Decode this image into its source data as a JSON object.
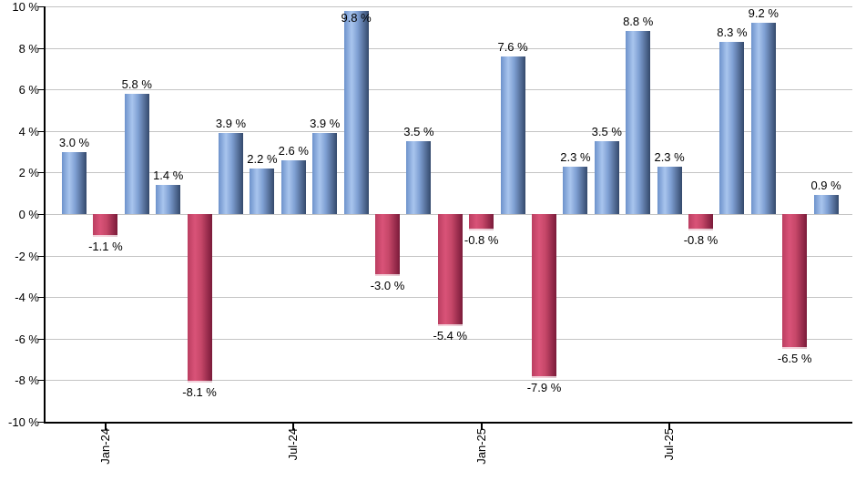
{
  "chart_data": {
    "type": "bar",
    "title": "",
    "xlabel": "",
    "ylabel": "",
    "grid": "horizontal",
    "legend": "none",
    "ylim": [
      -10,
      10
    ],
    "y_step": 2,
    "y_tick_labels": [
      "10 %",
      "8 %",
      "6 %",
      "4 %",
      "2 %",
      "0 %",
      "-2 %",
      "-4 %",
      "-6 %",
      "-8 %",
      "-10 %"
    ],
    "x_tick_labels": [
      {
        "label": "Jan-24",
        "bar_index": 1
      },
      {
        "label": "Jul-24",
        "bar_index": 7
      },
      {
        "label": "Jan-25",
        "bar_index": 13
      },
      {
        "label": "Jul-25",
        "bar_index": 19
      }
    ],
    "bars": [
      {
        "value": 3.0,
        "label": "3.0 %"
      },
      {
        "value": -1.1,
        "label": "-1.1 %"
      },
      {
        "value": 5.8,
        "label": "5.8 %"
      },
      {
        "value": 1.4,
        "label": "1.4 %"
      },
      {
        "value": -8.1,
        "label": "-8.1 %"
      },
      {
        "value": 3.9,
        "label": "3.9 %"
      },
      {
        "value": 2.2,
        "label": "2.2 %"
      },
      {
        "value": 2.6,
        "label": "2.6 %"
      },
      {
        "value": 3.9,
        "label": "3.9 %"
      },
      {
        "value": 9.8,
        "label": "9.8 %"
      },
      {
        "value": -3.0,
        "label": "-3.0 %"
      },
      {
        "value": 3.5,
        "label": "3.5 %"
      },
      {
        "value": -5.4,
        "label": "-5.4 %"
      },
      {
        "value": -0.8,
        "label": "-0.8 %"
      },
      {
        "value": 7.6,
        "label": "7.6 %"
      },
      {
        "value": -7.9,
        "label": "-7.9 %"
      },
      {
        "value": 2.3,
        "label": "2.3 %"
      },
      {
        "value": 3.5,
        "label": "3.5 %"
      },
      {
        "value": 8.8,
        "label": "8.8 %"
      },
      {
        "value": 2.3,
        "label": "2.3 %"
      },
      {
        "value": -0.8,
        "label": "-0.8 %"
      },
      {
        "value": 8.3,
        "label": "8.3 %"
      },
      {
        "value": 9.2,
        "label": "9.2 %"
      },
      {
        "value": -6.5,
        "label": "-6.5 %"
      },
      {
        "value": 0.9,
        "label": "0.9 %"
      }
    ],
    "colors": {
      "positive_edge": "#6d92cb",
      "positive_light": "#a9c5ee",
      "positive_mid": "#7e9fd2",
      "positive_dark": "#34496c",
      "negative_edge": "#bb3e61",
      "negative_light": "#d95378",
      "negative_mid": "#c64769",
      "negative_dark": "#7a1a39",
      "gridline": "#c4c4c4",
      "axis": "#000000",
      "text": "#000000",
      "background": "#ffffff"
    }
  }
}
